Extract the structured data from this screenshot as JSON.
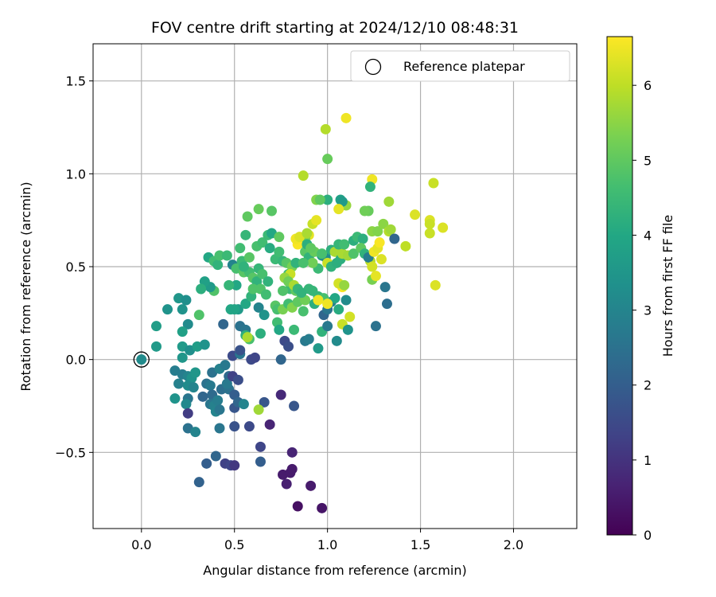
{
  "chart_data": {
    "type": "scatter",
    "title": "FOV centre drift starting at 2024/12/10 08:48:31",
    "xlabel": "Angular distance from reference (arcmin)",
    "ylabel": "Rotation from reference (arcmin)",
    "colorbar_label": "Hours from first FF file",
    "xlim": [
      -0.26,
      2.34
    ],
    "ylim": [
      -0.91,
      1.7
    ],
    "xticks": [
      0.0,
      0.5,
      1.0,
      1.5,
      2.0
    ],
    "xtick_labels": [
      "0.0",
      "0.5",
      "1.0",
      "1.5",
      "2.0"
    ],
    "yticks": [
      -0.5,
      0.0,
      0.5,
      1.0,
      1.5
    ],
    "ytick_labels": [
      "−0.5",
      "0.0",
      "0.5",
      "1.0",
      "1.5"
    ],
    "colorbar_ticks": [
      0,
      1,
      2,
      3,
      4,
      5,
      6
    ],
    "colorbar_tick_labels": [
      "0",
      "1",
      "2",
      "3",
      "4",
      "5",
      "6"
    ],
    "colorbar_range": [
      0,
      6.65
    ],
    "colormap": "viridis",
    "grid": true,
    "legend": {
      "location": "top-right",
      "entries": [
        {
          "label": "Reference platepar",
          "marker": "open-circle",
          "x": 0.0,
          "y": 0.0
        }
      ]
    },
    "points": [
      [
        0.0,
        0.0,
        3.2
      ],
      [
        0.08,
        0.07,
        3.6
      ],
      [
        0.08,
        0.18,
        3.7
      ],
      [
        0.14,
        0.27,
        3.4
      ],
      [
        0.2,
        0.33,
        3.5
      ],
      [
        0.24,
        0.32,
        3.3
      ],
      [
        0.22,
        0.27,
        3.4
      ],
      [
        0.25,
        0.19,
        3.2
      ],
      [
        0.22,
        0.15,
        3.8
      ],
      [
        0.22,
        0.07,
        3.6
      ],
      [
        0.26,
        0.05,
        3.3
      ],
      [
        0.3,
        0.07,
        3.7
      ],
      [
        0.34,
        0.08,
        3.4
      ],
      [
        0.22,
        0.01,
        3.5
      ],
      [
        0.18,
        -0.06,
        2.8
      ],
      [
        0.22,
        -0.08,
        2.8
      ],
      [
        0.25,
        -0.09,
        3.0
      ],
      [
        0.27,
        -0.1,
        3.4
      ],
      [
        0.29,
        -0.07,
        3.5
      ],
      [
        0.2,
        -0.13,
        2.9
      ],
      [
        0.25,
        -0.14,
        3.2
      ],
      [
        0.28,
        -0.15,
        3.0
      ],
      [
        0.18,
        -0.21,
        3.4
      ],
      [
        0.25,
        -0.21,
        2.6
      ],
      [
        0.24,
        -0.24,
        3.1
      ],
      [
        0.35,
        -0.13,
        2.5
      ],
      [
        0.37,
        -0.14,
        2.7
      ],
      [
        0.38,
        -0.19,
        2.3
      ],
      [
        0.33,
        -0.2,
        2.2
      ],
      [
        0.37,
        -0.24,
        2.6
      ],
      [
        0.39,
        -0.25,
        2.9
      ],
      [
        0.41,
        -0.22,
        2.8
      ],
      [
        0.43,
        -0.16,
        2.4
      ],
      [
        0.47,
        -0.16,
        2.5
      ],
      [
        0.47,
        -0.09,
        2.3
      ],
      [
        0.46,
        -0.13,
        2.7
      ],
      [
        0.5,
        -0.19,
        2.0
      ],
      [
        0.4,
        -0.28,
        3.0
      ],
      [
        0.42,
        -0.27,
        2.6
      ],
      [
        0.38,
        -0.07,
        2.5
      ],
      [
        0.42,
        -0.05,
        2.9
      ],
      [
        0.45,
        -0.03,
        2.7
      ],
      [
        0.49,
        -0.09,
        1.3
      ],
      [
        0.52,
        -0.11,
        1.6
      ],
      [
        0.5,
        -0.26,
        1.8
      ],
      [
        0.52,
        -0.23,
        2.2
      ],
      [
        0.55,
        -0.24,
        3.0
      ],
      [
        0.5,
        -0.36,
        1.7
      ],
      [
        0.58,
        -0.36,
        1.5
      ],
      [
        0.25,
        -0.29,
        1.2
      ],
      [
        0.25,
        -0.37,
        2.5
      ],
      [
        0.29,
        -0.39,
        3.0
      ],
      [
        0.42,
        -0.37,
        2.6
      ],
      [
        0.4,
        -0.52,
        2.2
      ],
      [
        0.35,
        -0.56,
        2.0
      ],
      [
        0.31,
        -0.66,
        2.1
      ],
      [
        0.45,
        -0.56,
        1.3
      ],
      [
        0.48,
        -0.57,
        1.4
      ],
      [
        0.5,
        -0.57,
        1.1
      ],
      [
        0.49,
        0.02,
        1.5
      ],
      [
        0.53,
        0.03,
        2.6
      ],
      [
        0.59,
        0.0,
        1.5
      ],
      [
        0.61,
        0.01,
        1.4
      ],
      [
        0.64,
        -0.47,
        1.4
      ],
      [
        0.64,
        -0.55,
        2.0
      ],
      [
        0.66,
        -0.23,
        1.8
      ],
      [
        0.69,
        -0.35,
        0.7
      ],
      [
        0.75,
        -0.19,
        0.8
      ],
      [
        0.76,
        -0.62,
        0.5
      ],
      [
        0.78,
        -0.67,
        0.6
      ],
      [
        0.8,
        -0.61,
        0.5
      ],
      [
        0.81,
        -0.59,
        0.5
      ],
      [
        0.81,
        -0.5,
        0.7
      ],
      [
        0.82,
        -0.25,
        1.8
      ],
      [
        0.84,
        -0.79,
        0.3
      ],
      [
        0.91,
        -0.68,
        0.5
      ],
      [
        0.97,
        -0.8,
        0.4
      ],
      [
        0.77,
        0.1,
        1.5
      ],
      [
        0.79,
        0.07,
        1.6
      ],
      [
        0.75,
        0.0,
        2.2
      ],
      [
        0.53,
        0.05,
        1.7
      ],
      [
        0.53,
        0.18,
        2.5
      ],
      [
        0.56,
        0.16,
        2.6
      ],
      [
        0.44,
        0.19,
        2.2
      ],
      [
        0.52,
        0.27,
        3.6
      ],
      [
        0.56,
        0.3,
        4.0
      ],
      [
        0.59,
        0.34,
        4.3
      ],
      [
        0.63,
        0.28,
        3.0
      ],
      [
        0.66,
        0.24,
        3.4
      ],
      [
        0.64,
        0.14,
        4.2
      ],
      [
        0.58,
        0.11,
        4.7
      ],
      [
        0.56,
        0.13,
        4.2
      ],
      [
        0.48,
        0.27,
        4.0
      ],
      [
        0.5,
        0.27,
        3.9
      ],
      [
        0.51,
        0.4,
        4.0
      ],
      [
        0.47,
        0.4,
        4.4
      ],
      [
        0.39,
        0.37,
        4.8
      ],
      [
        0.37,
        0.39,
        3.6
      ],
      [
        0.34,
        0.42,
        3.8
      ],
      [
        0.31,
        0.24,
        4.8
      ],
      [
        0.32,
        0.38,
        4.2
      ],
      [
        0.36,
        0.55,
        4.0
      ],
      [
        0.39,
        0.53,
        4.6
      ],
      [
        0.41,
        0.51,
        4.3
      ],
      [
        0.42,
        0.56,
        4.7
      ],
      [
        0.46,
        0.56,
        4.5
      ],
      [
        0.49,
        0.51,
        3.0
      ],
      [
        0.51,
        0.49,
        4.7
      ],
      [
        0.54,
        0.53,
        4.5
      ],
      [
        0.53,
        0.6,
        4.6
      ],
      [
        0.55,
        0.47,
        4.9
      ],
      [
        0.58,
        0.47,
        4.6
      ],
      [
        0.58,
        0.55,
        4.9
      ],
      [
        0.6,
        0.44,
        4.9
      ],
      [
        0.62,
        0.42,
        4.3
      ],
      [
        0.63,
        0.49,
        4.4
      ],
      [
        0.65,
        0.46,
        4.7
      ],
      [
        0.68,
        0.42,
        4.3
      ],
      [
        0.6,
        0.38,
        4.8
      ],
      [
        0.64,
        0.38,
        4.8
      ],
      [
        0.67,
        0.35,
        4.6
      ],
      [
        0.62,
        0.61,
        4.7
      ],
      [
        0.65,
        0.63,
        4.6
      ],
      [
        0.69,
        0.6,
        4.1
      ],
      [
        0.68,
        0.67,
        4.5
      ],
      [
        0.7,
        0.68,
        4.0
      ],
      [
        0.74,
        0.66,
        5.0
      ],
      [
        0.63,
        0.81,
        5.1
      ],
      [
        0.57,
        0.77,
        5.0
      ],
      [
        0.56,
        0.67,
        4.4
      ],
      [
        0.55,
        0.5,
        4.3
      ],
      [
        0.7,
        0.8,
        4.9
      ],
      [
        0.72,
        0.54,
        4.5
      ],
      [
        0.74,
        0.58,
        4.6
      ],
      [
        0.76,
        0.53,
        4.4
      ],
      [
        0.78,
        0.52,
        4.9
      ],
      [
        0.78,
        0.44,
        4.6
      ],
      [
        0.79,
        0.46,
        4.5
      ],
      [
        0.81,
        0.5,
        5.3
      ],
      [
        0.8,
        0.38,
        4.5
      ],
      [
        0.83,
        0.37,
        5.0
      ],
      [
        0.76,
        0.37,
        4.8
      ],
      [
        0.72,
        0.29,
        4.9
      ],
      [
        0.73,
        0.27,
        4.7
      ],
      [
        0.76,
        0.27,
        5.3
      ],
      [
        0.79,
        0.3,
        4.6
      ],
      [
        0.81,
        0.28,
        5.4
      ],
      [
        0.84,
        0.31,
        5.0
      ],
      [
        0.86,
        0.33,
        5.0
      ],
      [
        0.88,
        0.32,
        5.2
      ],
      [
        0.9,
        0.38,
        4.4
      ],
      [
        0.92,
        0.37,
        4.4
      ],
      [
        0.87,
        0.26,
        4.7
      ],
      [
        0.82,
        0.16,
        4.5
      ],
      [
        0.73,
        0.2,
        4.6
      ],
      [
        0.74,
        0.16,
        4.0
      ],
      [
        0.88,
        0.1,
        2.7
      ],
      [
        0.9,
        0.11,
        2.8
      ],
      [
        0.95,
        0.06,
        3.6
      ],
      [
        0.97,
        0.15,
        4.3
      ],
      [
        0.98,
        0.24,
        2.2
      ],
      [
        1.0,
        0.27,
        2.6
      ],
      [
        1.0,
        0.18,
        2.7
      ],
      [
        1.02,
        0.31,
        2.9
      ],
      [
        1.04,
        0.33,
        4.0
      ],
      [
        1.06,
        0.27,
        4.1
      ],
      [
        1.05,
        0.1,
        3.2
      ],
      [
        1.08,
        0.19,
        6.1
      ],
      [
        1.11,
        0.16,
        3.4
      ],
      [
        1.1,
        0.32,
        3.2
      ],
      [
        1.12,
        0.23,
        6.2
      ],
      [
        1.08,
        0.39,
        6.6
      ],
      [
        1.06,
        0.41,
        6.2
      ],
      [
        1.09,
        0.4,
        5.6
      ],
      [
        0.95,
        0.34,
        4.4
      ],
      [
        0.98,
        0.33,
        4.7
      ],
      [
        1.0,
        0.3,
        6.5
      ],
      [
        0.93,
        0.3,
        4.2
      ],
      [
        0.95,
        0.49,
        4.5
      ],
      [
        0.97,
        0.56,
        3.6
      ],
      [
        0.99,
        0.55,
        3.2
      ],
      [
        1.0,
        0.52,
        6.1
      ],
      [
        1.02,
        0.59,
        4.2
      ],
      [
        1.04,
        0.58,
        5.8
      ],
      [
        1.02,
        0.5,
        4.3
      ],
      [
        1.05,
        0.52,
        4.2
      ],
      [
        1.07,
        0.54,
        4.2
      ],
      [
        1.08,
        0.57,
        5.8
      ],
      [
        1.06,
        0.62,
        4.4
      ],
      [
        1.09,
        0.62,
        4.6
      ],
      [
        1.11,
        0.56,
        5.7
      ],
      [
        1.14,
        0.57,
        4.8
      ],
      [
        1.14,
        0.64,
        4.2
      ],
      [
        1.16,
        0.66,
        4.5
      ],
      [
        1.19,
        0.65,
        4.2
      ],
      [
        1.18,
        0.6,
        5.0
      ],
      [
        1.2,
        0.57,
        4.3
      ],
      [
        1.23,
        0.53,
        5.9
      ],
      [
        1.22,
        0.55,
        2.8
      ],
      [
        1.24,
        0.5,
        6.2
      ],
      [
        1.24,
        0.43,
        5.3
      ],
      [
        1.26,
        0.45,
        6.4
      ],
      [
        1.26,
        0.18,
        2.5
      ],
      [
        1.31,
        0.39,
        2.6
      ],
      [
        1.32,
        0.3,
        2.4
      ],
      [
        1.25,
        0.58,
        6.5
      ],
      [
        1.27,
        0.6,
        6.4
      ],
      [
        1.28,
        0.63,
        6.6
      ],
      [
        1.29,
        0.54,
        6.3
      ],
      [
        1.24,
        0.69,
        5.5
      ],
      [
        1.27,
        0.69,
        5.4
      ],
      [
        1.3,
        0.73,
        5.5
      ],
      [
        1.33,
        0.69,
        5.9
      ],
      [
        1.34,
        0.7,
        5.7
      ],
      [
        1.36,
        0.65,
        2.2
      ],
      [
        1.42,
        0.61,
        6.0
      ],
      [
        1.47,
        0.78,
        6.3
      ],
      [
        1.55,
        0.75,
        6.3
      ],
      [
        1.55,
        0.73,
        6.1
      ],
      [
        1.55,
        0.68,
        6.1
      ],
      [
        1.58,
        0.4,
        6.3
      ],
      [
        1.57,
        0.95,
        6.1
      ],
      [
        1.62,
        0.71,
        6.3
      ],
      [
        1.33,
        0.85,
        5.7
      ],
      [
        1.24,
        0.97,
        6.5
      ],
      [
        1.23,
        0.93,
        4.3
      ],
      [
        1.22,
        0.8,
        5.1
      ],
      [
        1.2,
        0.8,
        5.2
      ],
      [
        1.1,
        0.83,
        5.6
      ],
      [
        1.07,
        0.86,
        3.8
      ],
      [
        1.08,
        0.85,
        3.6
      ],
      [
        1.06,
        0.81,
        6.4
      ],
      [
        1.0,
        0.86,
        4.2
      ],
      [
        0.99,
        1.24,
        5.9
      ],
      [
        1.0,
        1.08,
        5.1
      ],
      [
        1.1,
        1.3,
        6.5
      ],
      [
        0.87,
        0.99,
        5.9
      ],
      [
        0.92,
        0.73,
        6.1
      ],
      [
        0.94,
        0.75,
        6.4
      ],
      [
        0.94,
        0.86,
        5.4
      ],
      [
        0.96,
        0.86,
        5.0
      ],
      [
        0.9,
        0.67,
        6.4
      ],
      [
        0.88,
        0.65,
        5.4
      ],
      [
        0.86,
        0.63,
        5.3
      ],
      [
        0.84,
        0.62,
        6.6
      ],
      [
        0.83,
        0.65,
        6.5
      ],
      [
        0.85,
        0.66,
        6.3
      ],
      [
        0.89,
        0.68,
        5.8
      ],
      [
        0.88,
        0.58,
        4.9
      ],
      [
        0.9,
        0.55,
        4.3
      ],
      [
        0.93,
        0.58,
        5.1
      ],
      [
        0.97,
        0.57,
        4.7
      ],
      [
        0.89,
        0.62,
        4.2
      ],
      [
        0.91,
        0.6,
        5.0
      ],
      [
        0.83,
        0.52,
        4.3
      ],
      [
        0.8,
        0.46,
        6.1
      ],
      [
        0.77,
        0.44,
        5.6
      ],
      [
        0.79,
        0.42,
        5.2
      ],
      [
        0.82,
        0.4,
        5.8
      ],
      [
        0.84,
        0.38,
        4.4
      ],
      [
        0.86,
        0.36,
        4.3
      ],
      [
        0.63,
        -0.27,
        5.7
      ],
      [
        0.57,
        0.12,
        5.8
      ],
      [
        0.92,
        0.52,
        5.2
      ],
      [
        0.87,
        0.52,
        4.7
      ],
      [
        0.95,
        0.32,
        6.5
      ]
    ]
  }
}
